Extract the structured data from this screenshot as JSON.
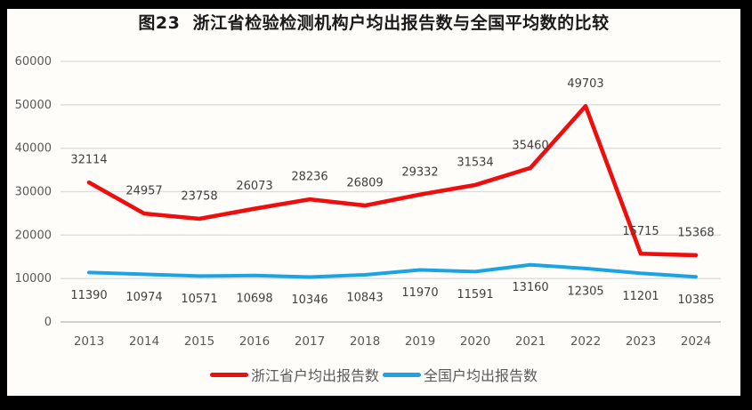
{
  "frame": {
    "border_color": "#000000",
    "panel_color": "#fffdfa"
  },
  "chart_data": {
    "type": "line",
    "title": "图23  浙江省检验检测机构户均出报告数与全国平均数的比较",
    "categories": [
      "2013",
      "2014",
      "2015",
      "2016",
      "2017",
      "2018",
      "2019",
      "2020",
      "2021",
      "2022",
      "2023",
      "2024"
    ],
    "series": [
      {
        "name": "浙江省户均出报告数",
        "color": "#ed0e0e",
        "values": [
          32114,
          24957,
          23758,
          26073,
          28236,
          26809,
          29332,
          31534,
          35460,
          49703,
          15715,
          15368
        ]
      },
      {
        "name": "全国户均出报告数",
        "color": "#1ba4e3",
        "values": [
          11390,
          10974,
          10571,
          10698,
          10346,
          10843,
          11970,
          11591,
          13160,
          12305,
          11201,
          10385
        ]
      }
    ],
    "y_axis": {
      "min": 0,
      "max": 60000,
      "step": 10000,
      "ticks": [
        0,
        10000,
        20000,
        30000,
        40000,
        50000,
        60000
      ]
    },
    "grid": true,
    "data_labels": true,
    "legend_position": "bottom",
    "gridline_color": "#dcdcdc",
    "zero_line_color": "#c9c9c9",
    "axis_label_color": "#595959",
    "data_label_color": "#404040"
  }
}
